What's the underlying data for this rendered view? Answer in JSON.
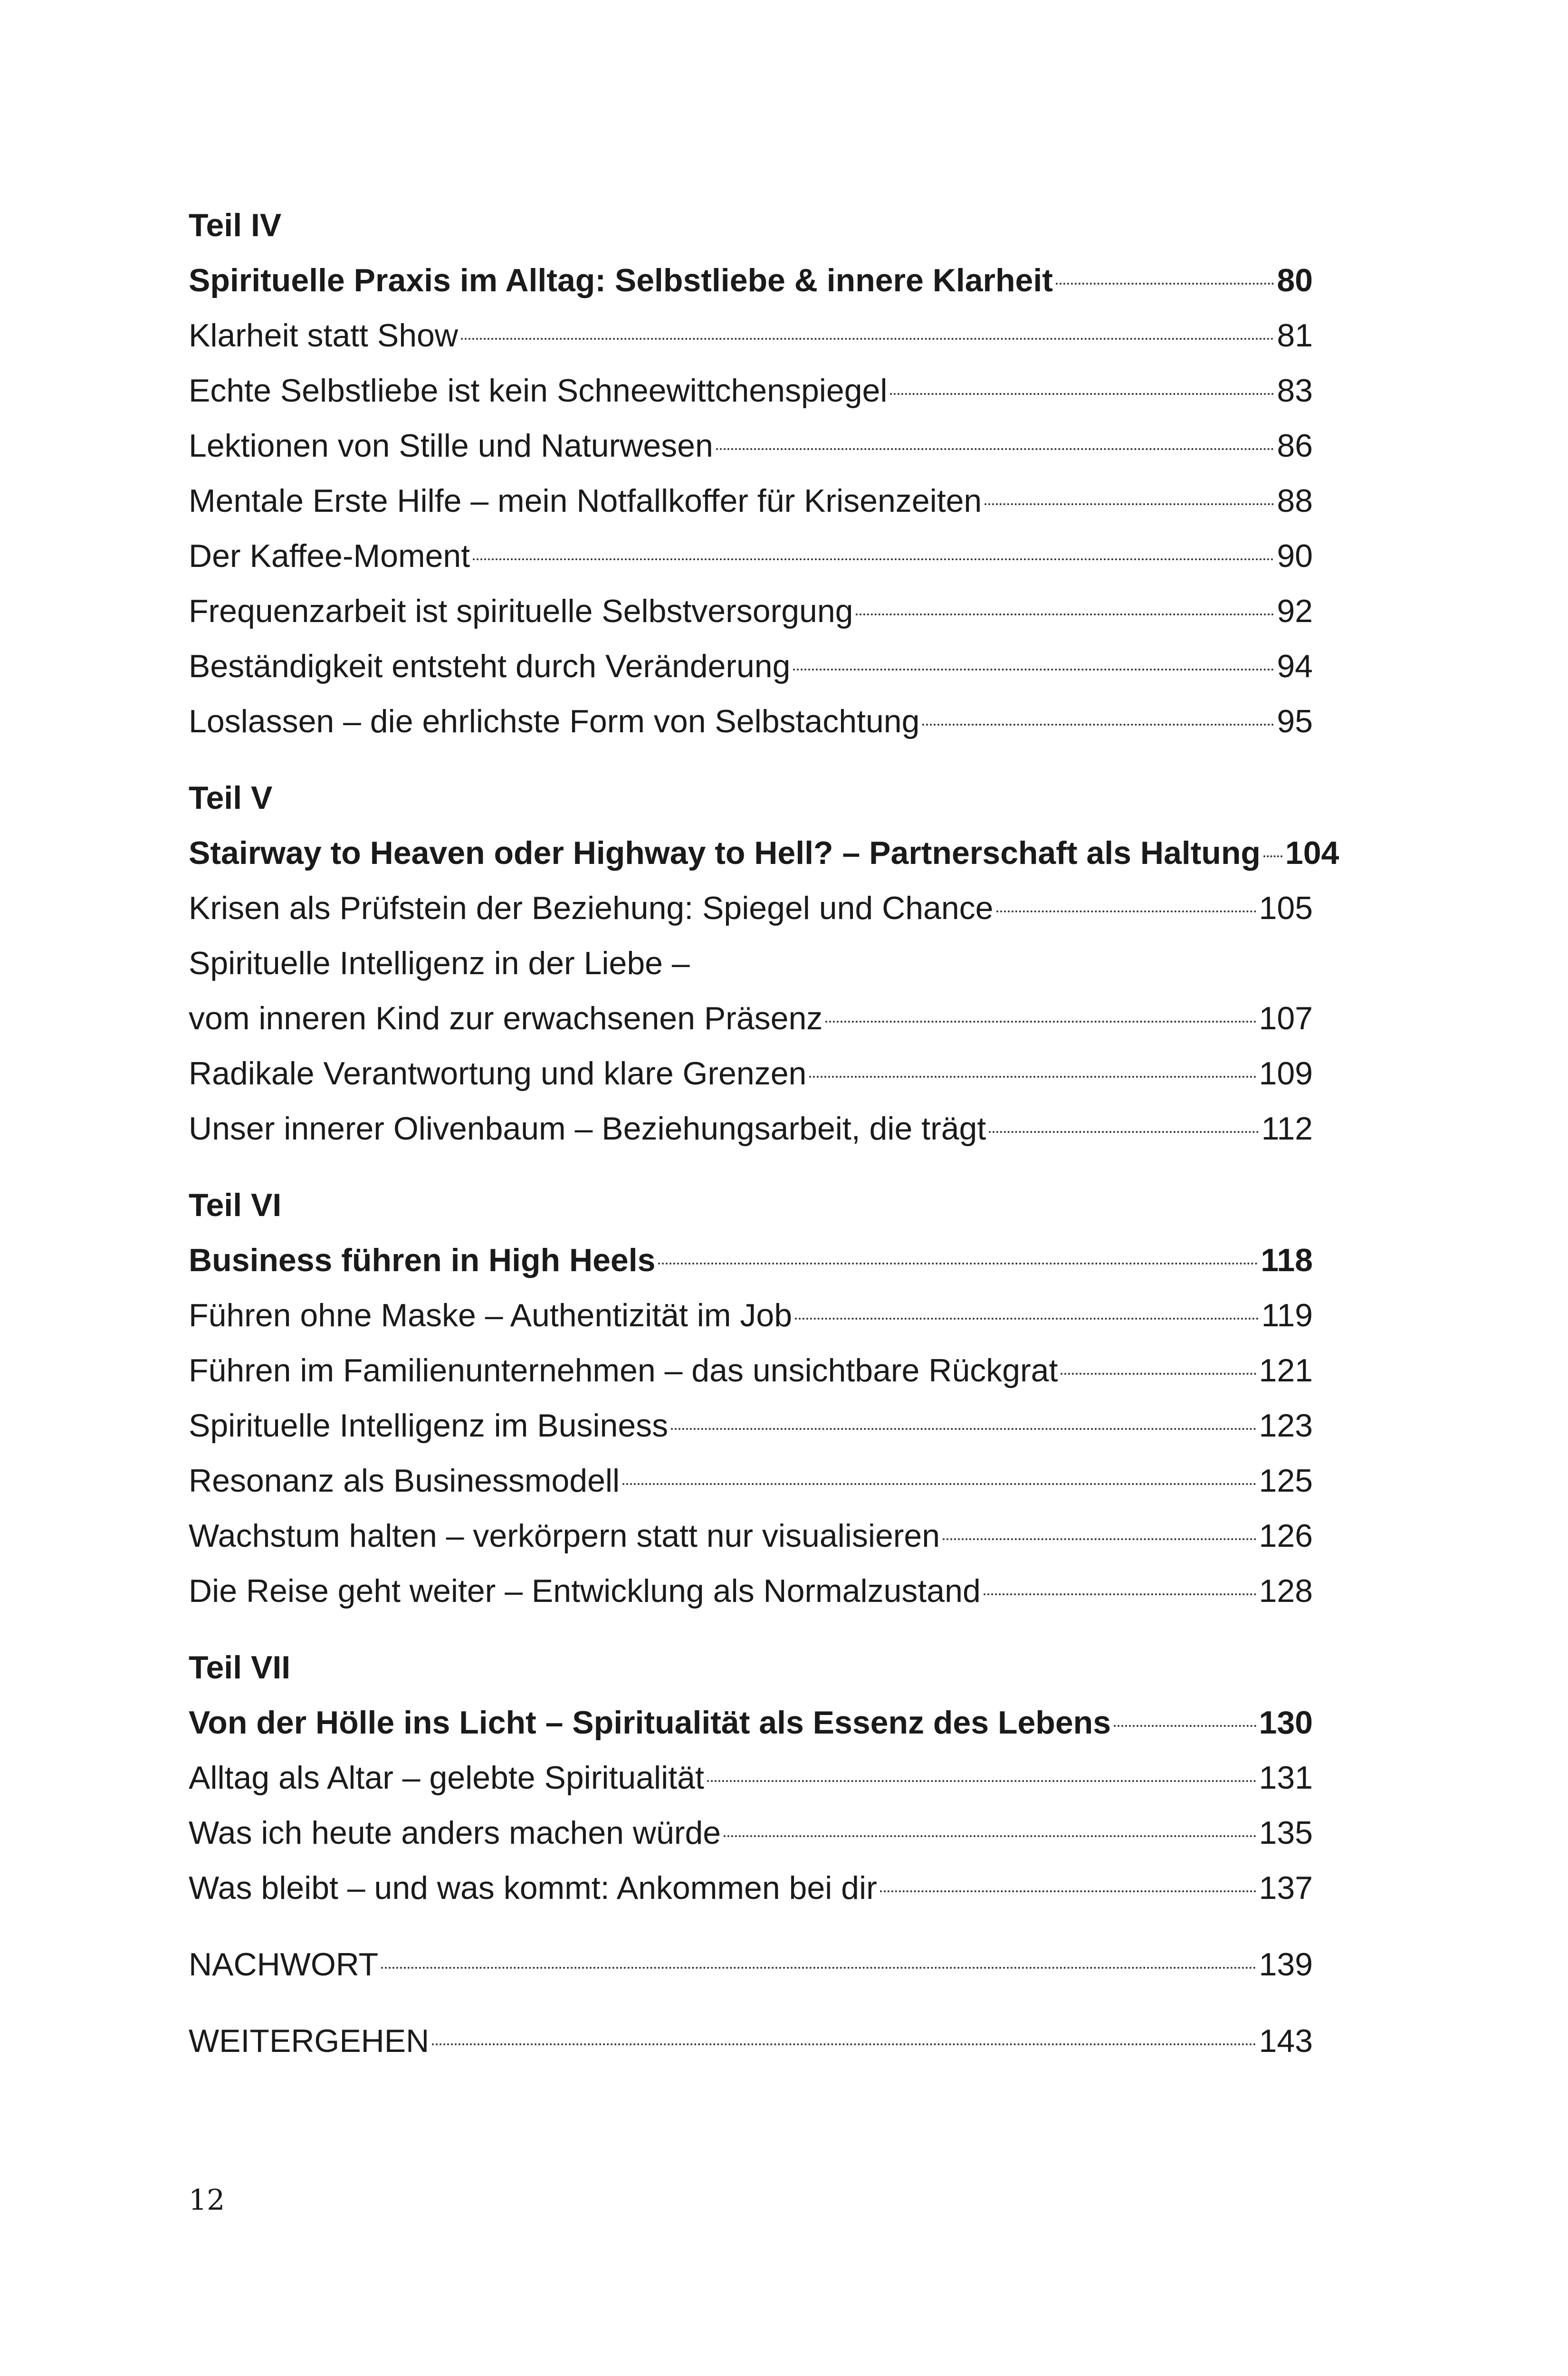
{
  "sections": [
    {
      "part": "Teil IV",
      "entries": [
        {
          "title": "Spirituelle Praxis im Alltag: Selbstliebe & innere Klarheit",
          "page": "80",
          "bold": true
        },
        {
          "title": "Klarheit statt Show",
          "page": "81"
        },
        {
          "title": "Echte Selbstliebe ist kein Schneewittchenspiegel",
          "page": "83"
        },
        {
          "title": "Lektionen von Stille und Naturwesen",
          "page": "86"
        },
        {
          "title": "Mentale Erste Hilfe – mein Notfallkoffer für Krisenzeiten",
          "page": "88"
        },
        {
          "title": "Der Kaffee-Moment",
          "page": "90"
        },
        {
          "title": "Frequenzarbeit ist spirituelle Selbstversorgung",
          "page": "92"
        },
        {
          "title": "Beständigkeit entsteht durch Veränderung",
          "page": "94"
        },
        {
          "title": "Loslassen – die ehrlichste Form von Selbstachtung",
          "page": "95"
        }
      ]
    },
    {
      "part": "Teil V",
      "entries": [
        {
          "title": "Stairway to Heaven oder Highway to Hell? – Partnerschaft als Haltung",
          "page": "104",
          "bold": true
        },
        {
          "title": "Krisen als Prüfstein der Beziehung: Spiegel und Chance",
          "page": "105"
        },
        {
          "title": "Spirituelle Intelligenz in der Liebe –",
          "page": ""
        },
        {
          "title": "vom inneren Kind zur erwachsenen Präsenz",
          "page": "107"
        },
        {
          "title": "Radikale Verantwortung und klare Grenzen",
          "page": "109"
        },
        {
          "title": "Unser innerer Olivenbaum – Beziehungsarbeit, die trägt",
          "page": "112"
        }
      ]
    },
    {
      "part": "Teil VI",
      "entries": [
        {
          "title": "Business führen in High Heels",
          "page": "118",
          "bold": true
        },
        {
          "title": "Führen ohne Maske – Authentizität im Job",
          "page": "119"
        },
        {
          "title": "Führen im Familienunternehmen – das unsichtbare Rückgrat",
          "page": "121"
        },
        {
          "title": "Spirituelle Intelligenz im Business",
          "page": "123"
        },
        {
          "title": "Resonanz als Businessmodell",
          "page": "125"
        },
        {
          "title": "Wachstum halten – verkörpern statt nur visualisieren",
          "page": "126"
        },
        {
          "title": "Die Reise geht weiter – Entwicklung als Normalzustand",
          "page": "128"
        }
      ]
    },
    {
      "part": "Teil VII",
      "entries": [
        {
          "title": "Von der Hölle ins Licht – Spiritualität als Essenz des Lebens",
          "page": "130",
          "bold": true
        },
        {
          "title": "Alltag als Altar – gelebte Spiritualität",
          "page": "131"
        },
        {
          "title": "Was ich heute anders machen würde",
          "page": "135"
        },
        {
          "title": "Was bleibt – und was kommt: Ankommen bei dir",
          "page": "137"
        }
      ]
    }
  ],
  "back_matter": [
    {
      "title": "NACHWORT",
      "page": "139"
    },
    {
      "title": "WEITERGEHEN",
      "page": "143"
    }
  ],
  "page_number": "12"
}
